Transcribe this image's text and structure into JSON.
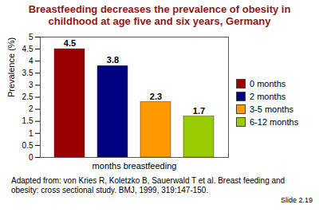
{
  "chart_data": {
    "type": "bar",
    "title": "Breastfeeding decreases the prevalence of obesity in childhood at age five and six years, Germany",
    "x_label": "months breastfeeding",
    "y_label": "Prevalence (%)",
    "categories": [
      "0 months",
      "2 months",
      "3-5 months",
      "6-12 months"
    ],
    "values": [
      4.5,
      3.8,
      2.3,
      1.7
    ],
    "colors": [
      "#990000",
      "#000080",
      "#ff9900",
      "#99cc00"
    ],
    "ylim": [
      0,
      5
    ],
    "yticks": [
      0,
      0.5,
      1,
      1.5,
      2,
      2.5,
      3,
      3.5,
      4,
      4.5,
      5
    ],
    "grid": false,
    "legend": "right",
    "data_labels": true,
    "tick_labels": "y",
    "caption": "Adapted from: von Kries R, Koletzko B, Sauerwald T et al. Breast feeding and obesity: cross sectional study. BMJ, 1999, 319:147-150.",
    "annotations": [
      "Slide 2.19"
    ]
  }
}
